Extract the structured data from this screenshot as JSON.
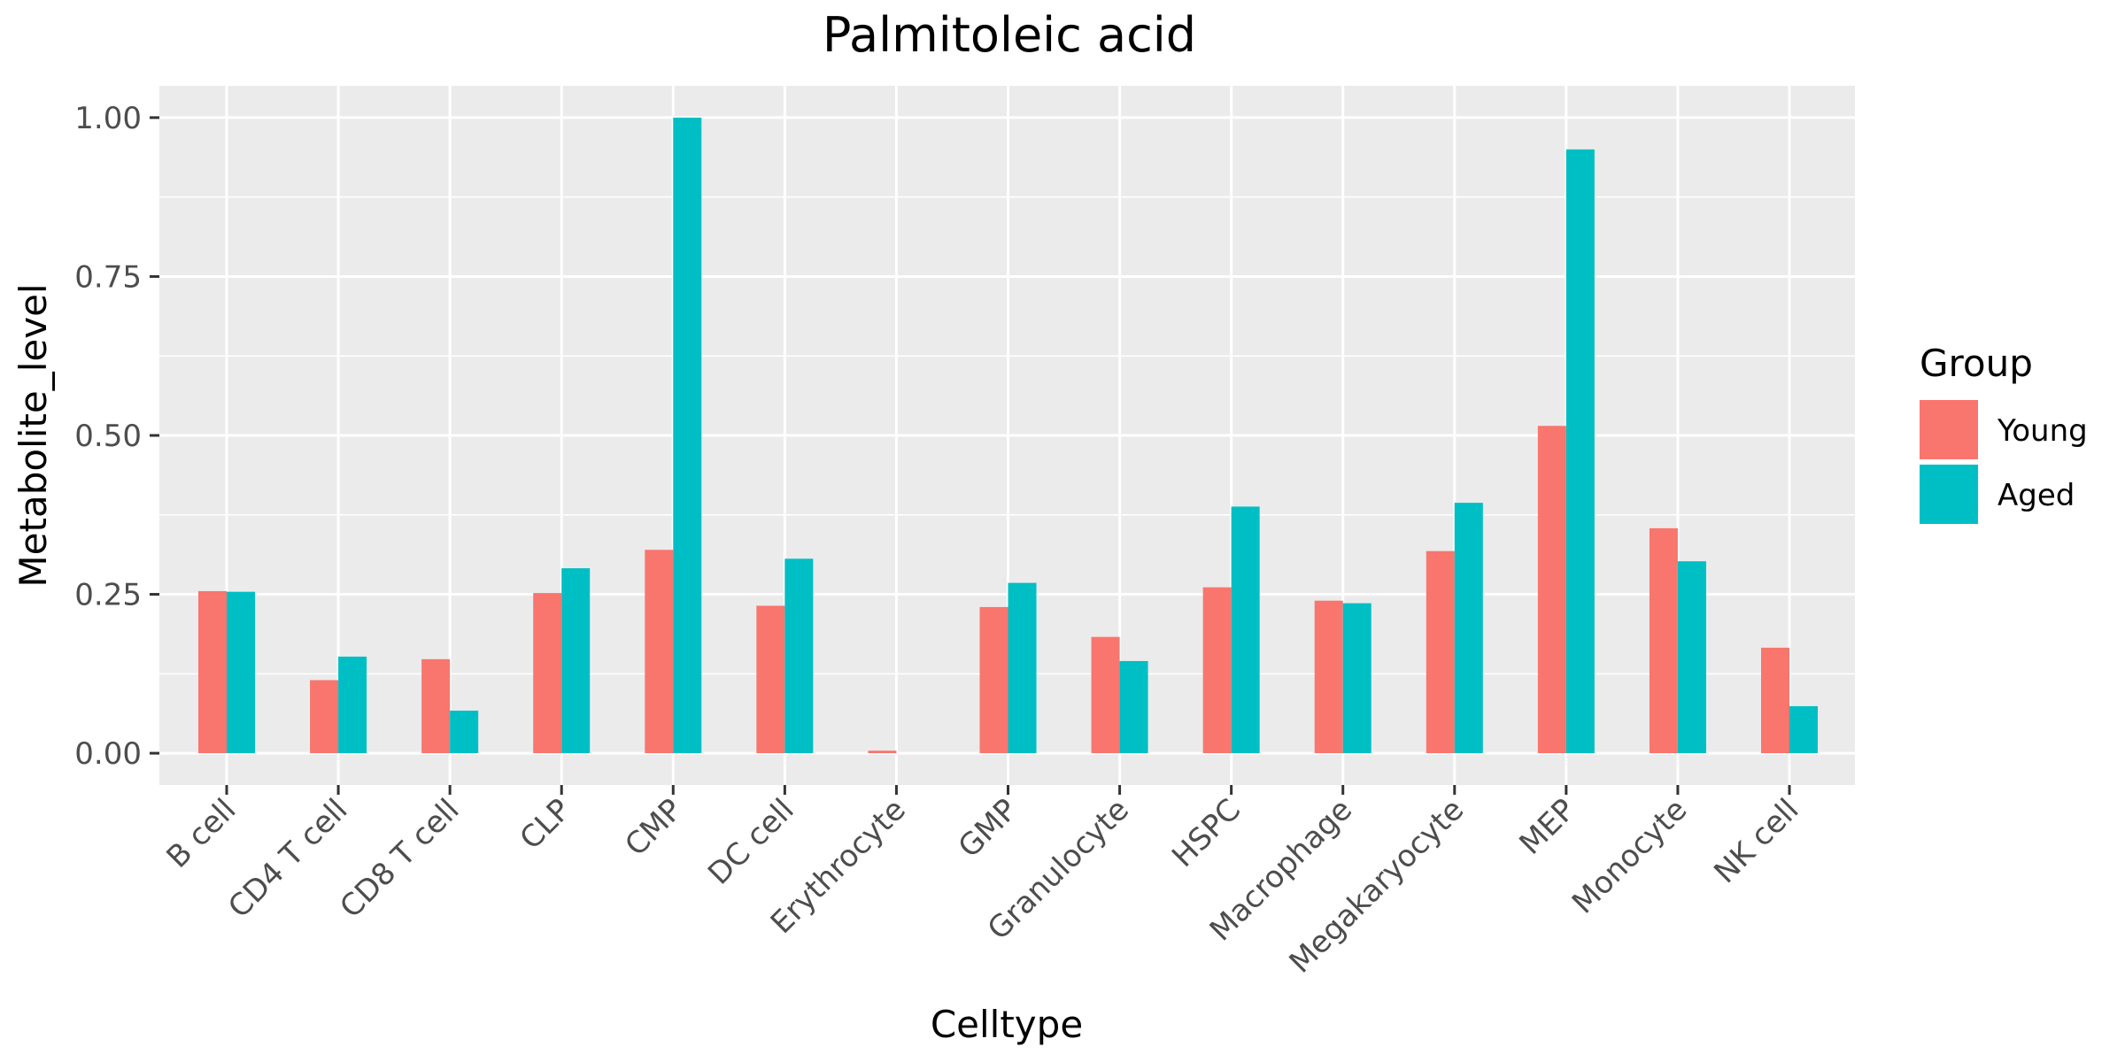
{
  "chart_data": {
    "type": "bar",
    "title": "Palmitoleic acid",
    "xlabel": "Celltype",
    "ylabel": "Metabolite_level",
    "ylim": [
      -0.05,
      1.05
    ],
    "yticks": [
      0.0,
      0.25,
      0.5,
      0.75,
      1.0
    ],
    "ytick_labels": [
      "0.00",
      "0.25",
      "0.50",
      "0.75",
      "1.00"
    ],
    "grid": true,
    "legend": {
      "title": "Group",
      "position": "right"
    },
    "categories": [
      "B cell",
      "CD4 T cell",
      "CD8 T cell",
      "CLP",
      "CMP",
      "DC cell",
      "Erythrocyte",
      "GMP",
      "Granulocyte",
      "HSPC",
      "Macrophage",
      "Megakaryocyte",
      "MEP",
      "Monocyte",
      "NK cell"
    ],
    "series": [
      {
        "name": "Young",
        "color": "#F8766D",
        "values": [
          0.255,
          0.115,
          0.148,
          0.252,
          0.32,
          0.232,
          0.004,
          0.23,
          0.183,
          0.261,
          0.24,
          0.318,
          0.515,
          0.354,
          0.166
        ]
      },
      {
        "name": "Aged",
        "color": "#00BFC4",
        "values": [
          0.254,
          0.152,
          0.067,
          0.291,
          1.0,
          0.306,
          0.0,
          0.268,
          0.145,
          0.388,
          0.236,
          0.394,
          0.95,
          0.302,
          0.074
        ]
      }
    ]
  },
  "colors": {
    "panel_bg": "#EBEBEB",
    "grid": "#FFFFFF",
    "axis_tick": "#333333"
  }
}
